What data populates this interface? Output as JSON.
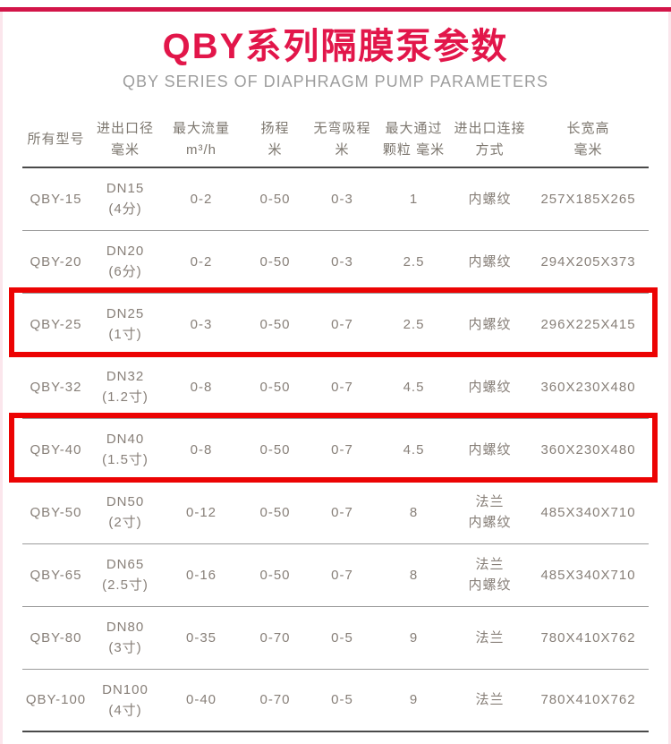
{
  "page": {
    "accent_color": "#e2164a",
    "highlight_color": "#ec0303"
  },
  "header": {
    "title": "QBY系列隔膜泵参数",
    "subtitle": "QBY SERIES OF DIAPHRAGM PUMP PARAMETERS"
  },
  "table": {
    "headers": [
      {
        "line1": "所有型号",
        "line2": ""
      },
      {
        "line1": "进出口径",
        "line2": "毫米"
      },
      {
        "line1": "最大流量",
        "line2": "m³/h"
      },
      {
        "line1": "扬程",
        "line2": "米"
      },
      {
        "line1": "无弯吸程",
        "line2": "米"
      },
      {
        "line1": "最大通过",
        "line2": "颗粒 毫米"
      },
      {
        "line1": "进出口连接",
        "line2": "方式"
      },
      {
        "line1": "长宽高",
        "line2": "毫米"
      }
    ],
    "rows": [
      {
        "model": "QBY-15",
        "dn": "DN15",
        "dn_note": "(4分)",
        "flow": "0-2",
        "head": "0-50",
        "suction": "0-3",
        "particle": "1",
        "connection": [
          "内螺纹"
        ],
        "dimensions": "257X185X265",
        "highlighted": false
      },
      {
        "model": "QBY-20",
        "dn": "DN20",
        "dn_note": "(6分)",
        "flow": "0-2",
        "head": "0-50",
        "suction": "0-3",
        "particle": "2.5",
        "connection": [
          "内螺纹"
        ],
        "dimensions": "294X205X373",
        "highlighted": false
      },
      {
        "model": "QBY-25",
        "dn": "DN25",
        "dn_note": "(1寸)",
        "flow": "0-3",
        "head": "0-50",
        "suction": "0-7",
        "particle": "2.5",
        "connection": [
          "内螺纹"
        ],
        "dimensions": "296X225X415",
        "highlighted": true
      },
      {
        "model": "QBY-32",
        "dn": "DN32",
        "dn_note": "(1.2寸)",
        "flow": "0-8",
        "head": "0-50",
        "suction": "0-7",
        "particle": "4.5",
        "connection": [
          "内螺纹"
        ],
        "dimensions": "360X230X480",
        "highlighted": false
      },
      {
        "model": "QBY-40",
        "dn": "DN40",
        "dn_note": "(1.5寸)",
        "flow": "0-8",
        "head": "0-50",
        "suction": "0-7",
        "particle": "4.5",
        "connection": [
          "内螺纹"
        ],
        "dimensions": "360X230X480",
        "highlighted": true
      },
      {
        "model": "QBY-50",
        "dn": "DN50",
        "dn_note": "(2寸)",
        "flow": "0-12",
        "head": "0-50",
        "suction": "0-7",
        "particle": "8",
        "connection": [
          "法兰",
          "内螺纹"
        ],
        "dimensions": "485X340X710",
        "highlighted": false
      },
      {
        "model": "QBY-65",
        "dn": "DN65",
        "dn_note": "(2.5寸)",
        "flow": "0-16",
        "head": "0-50",
        "suction": "0-7",
        "particle": "8",
        "connection": [
          "法兰",
          "内螺纹"
        ],
        "dimensions": "485X340X710",
        "highlighted": false
      },
      {
        "model": "QBY-80",
        "dn": "DN80",
        "dn_note": "(3寸)",
        "flow": "0-35",
        "head": "0-70",
        "suction": "0-5",
        "particle": "9",
        "connection": [
          "法兰"
        ],
        "dimensions": "780X410X762",
        "highlighted": false
      },
      {
        "model": "QBY-100",
        "dn": "DN100",
        "dn_note": "(4寸)",
        "flow": "0-40",
        "head": "0-70",
        "suction": "0-5",
        "particle": "9",
        "connection": [
          "法兰"
        ],
        "dimensions": "780X410X762",
        "highlighted": false
      }
    ]
  }
}
